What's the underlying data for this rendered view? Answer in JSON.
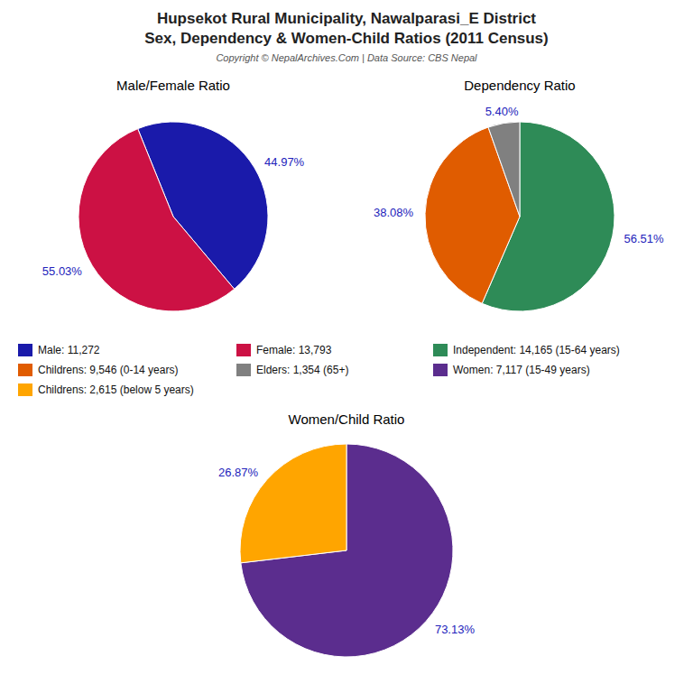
{
  "title": "Hupsekot Rural Municipality, Nawalparasi_E District",
  "subtitle": "Sex, Dependency & Women-Child Ratios (2011 Census)",
  "annotations": [
    "Copyright © NepalArchives.Com | Data Source: CBS Nepal"
  ],
  "chart_data": [
    {
      "type": "pie",
      "title": "Male/Female Ratio",
      "categories": [
        "Male: 11,272",
        "Female: 13,793"
      ],
      "values": [
        44.97,
        55.03
      ],
      "value_labels": [
        "44.97%",
        "55.03%"
      ],
      "colors": [
        "#1a1aaa",
        "#cc1144"
      ],
      "data_labels": true,
      "legend": "bottom"
    },
    {
      "type": "pie",
      "title": "Dependency Ratio",
      "categories": [
        "Independent: 14,165 (15-64 years)",
        "Childrens: 9,546 (0-14 years)",
        "Elders: 1,354 (65+)"
      ],
      "values": [
        56.51,
        38.08,
        5.4
      ],
      "value_labels": [
        "56.51%",
        "38.08%",
        "5.40%"
      ],
      "colors": [
        "#2e8b57",
        "#e05c00",
        "#808080"
      ],
      "data_labels": true,
      "legend": "bottom"
    },
    {
      "type": "pie",
      "title": "Women/Child Ratio",
      "categories": [
        "Women: 7,117 (15-49 years)",
        "Childrens: 2,615 (below 5 years)"
      ],
      "values": [
        73.13,
        26.87
      ],
      "value_labels": [
        "73.13%",
        "26.87%"
      ],
      "colors": [
        "#5b2d8e",
        "#ffa500"
      ],
      "data_labels": true,
      "legend": "bottom"
    }
  ]
}
